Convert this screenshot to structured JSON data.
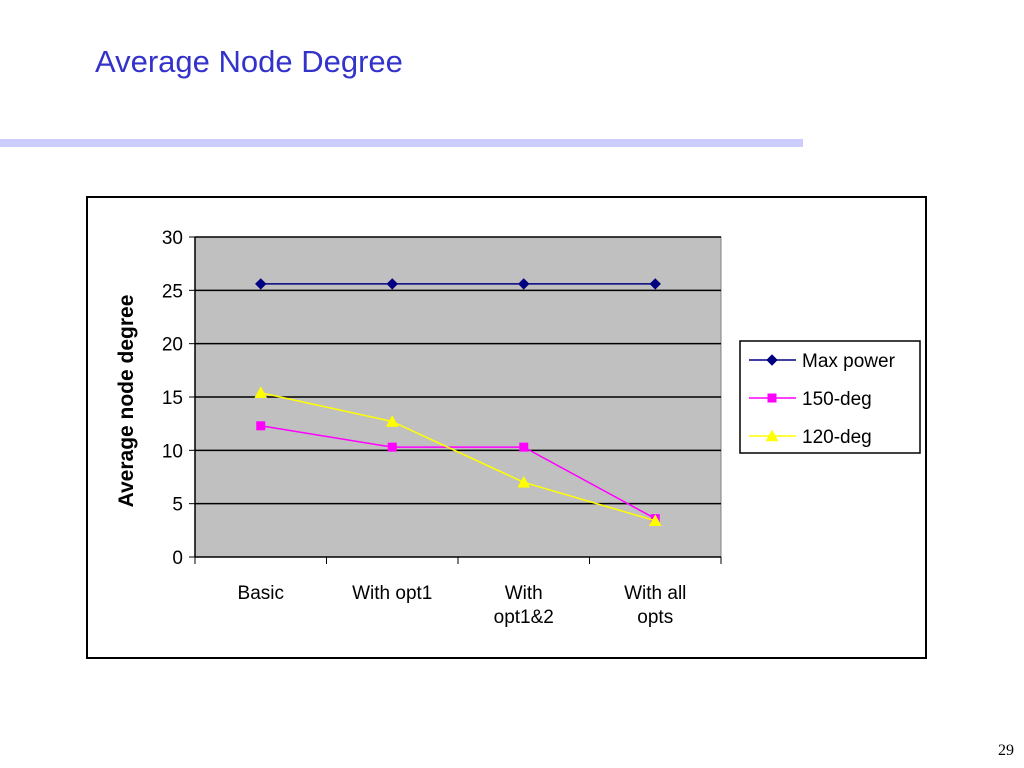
{
  "slide": {
    "title": "Average Node Degree",
    "page_number": "29"
  },
  "colors": {
    "title": "#3333cc",
    "title_rule": "#ccccff",
    "plot_background": "#c0c0c0"
  },
  "chart_data": {
    "type": "line",
    "title": "",
    "xlabel": "",
    "ylabel": "Average node degree",
    "categories": [
      [
        "Basic"
      ],
      [
        "With opt1"
      ],
      [
        "With",
        "opt1&2"
      ],
      [
        "With all",
        "opts"
      ]
    ],
    "ylim": [
      0,
      30
    ],
    "yticks": [
      0,
      5,
      10,
      15,
      20,
      25,
      30
    ],
    "grid": true,
    "legend_position": "right",
    "series": [
      {
        "name": "Max power",
        "values": [
          25.6,
          25.6,
          25.6,
          25.6
        ],
        "color": "#000080",
        "marker": "diamond"
      },
      {
        "name": "150-deg",
        "values": [
          12.3,
          10.3,
          10.3,
          3.6
        ],
        "color": "#ff00ff",
        "marker": "square"
      },
      {
        "name": "120-deg",
        "values": [
          15.4,
          12.7,
          7.0,
          3.4
        ],
        "color": "#ffff00",
        "marker": "triangle"
      }
    ]
  }
}
